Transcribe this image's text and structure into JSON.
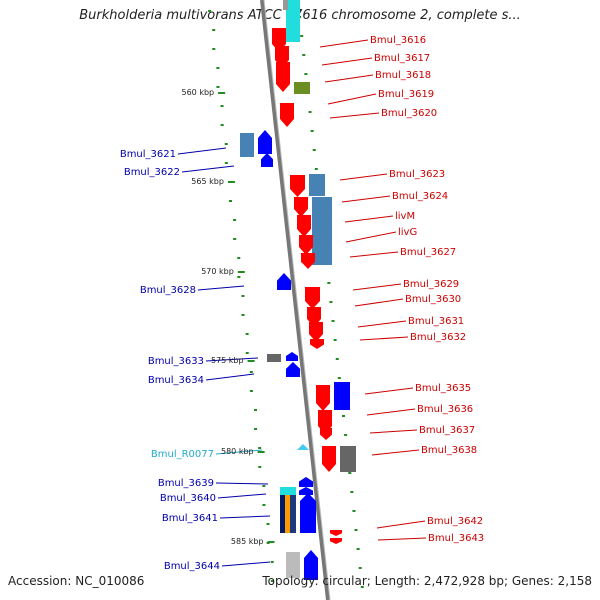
{
  "title": "Burkholderia multivorans ATCC 17616 chromosome 2, complete s...",
  "footer": {
    "accession": "Accession: NC_010086",
    "topology": "Topology: circular; Length: 2,472,928 bp; Genes: 2,158"
  },
  "colors": {
    "forward_gene": "#ff0000",
    "reverse_gene": "#0000ff",
    "rna_gene": "#44ccee",
    "backbone": "#888888",
    "tick": "#228B22",
    "label_forward": "#cc0000",
    "label_reverse": "#0000aa",
    "label_rna": "#22aacc"
  },
  "scale_labels": [
    {
      "text": "560 kbp",
      "kbp": 560
    },
    {
      "text": "565 kbp",
      "kbp": 565
    },
    {
      "text": "570 kbp",
      "kbp": 570
    },
    {
      "text": "575 kbp",
      "kbp": 575
    },
    {
      "text": "580 kbp",
      "kbp": 580
    },
    {
      "text": "585 kbp",
      "kbp": 585
    }
  ],
  "genes_right": [
    {
      "name": "Bmul_3616"
    },
    {
      "name": "Bmul_3617"
    },
    {
      "name": "Bmul_3618"
    },
    {
      "name": "Bmul_3619"
    },
    {
      "name": "Bmul_3620"
    },
    {
      "name": "Bmul_3623"
    },
    {
      "name": "Bmul_3624"
    },
    {
      "name": "livM"
    },
    {
      "name": "livG"
    },
    {
      "name": "Bmul_3627"
    },
    {
      "name": "Bmul_3629"
    },
    {
      "name": "Bmul_3630"
    },
    {
      "name": "Bmul_3631"
    },
    {
      "name": "Bmul_3632"
    },
    {
      "name": "Bmul_3635"
    },
    {
      "name": "Bmul_3636"
    },
    {
      "name": "Bmul_3637"
    },
    {
      "name": "Bmul_3638"
    },
    {
      "name": "Bmul_3642"
    },
    {
      "name": "Bmul_3643"
    }
  ],
  "genes_left": [
    {
      "name": "Bmul_3621"
    },
    {
      "name": "Bmul_3622"
    },
    {
      "name": "Bmul_3628"
    },
    {
      "name": "Bmul_3633"
    },
    {
      "name": "Bmul_3634"
    },
    {
      "name": "Bmul_R0077"
    },
    {
      "name": "Bmul_3639"
    },
    {
      "name": "Bmul_3640"
    },
    {
      "name": "Bmul_3641"
    },
    {
      "name": "Bmul_3644"
    }
  ]
}
